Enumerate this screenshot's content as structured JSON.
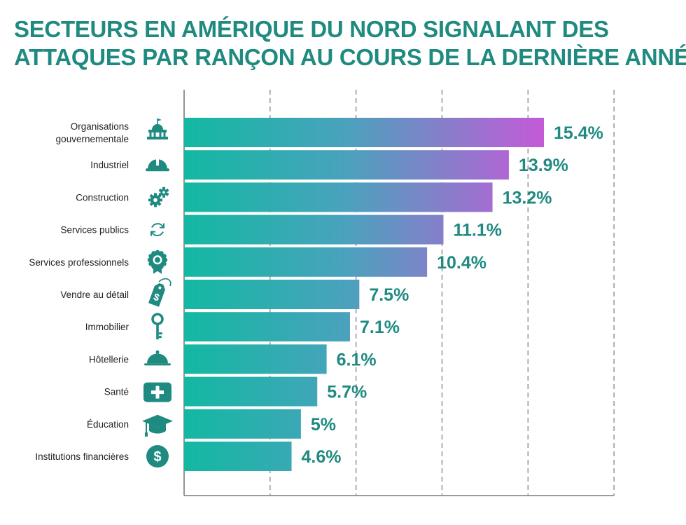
{
  "title_line1": "SECTEURS EN AMÉRIQUE DU NORD SIGNALANT DES",
  "title_line2": "ATTAQUES PAR RANÇON AU COURS DE LA DERNIÈRE ANNÉE",
  "colors": {
    "title": "#1f8a80",
    "bar_start": "#13b8a2",
    "bar_end": "#c45ad8",
    "icon": "#1f8a80",
    "value": "#1f8a80"
  },
  "chart_data": {
    "type": "bar",
    "orientation": "horizontal",
    "title": "SECTEURS EN AMÉRIQUE DU NORD SIGNALANT DES ATTAQUES PAR RANÇON AU COURS DE LA DERNIÈRE ANNÉE",
    "categories": [
      "Organisations\ngouvernementale",
      "Industriel",
      "Construction",
      "Services publics",
      "Services professionnels",
      "Vendre au détail",
      "Immobilier",
      "Hôtellerie",
      "Santé",
      "Éducation",
      "Institutions financières"
    ],
    "values": [
      15.4,
      13.9,
      13.2,
      11.1,
      10.4,
      7.5,
      7.1,
      6.1,
      5.7,
      5,
      4.6
    ],
    "value_labels": [
      "15.4%",
      "13.9%",
      "13.2%",
      "11.1%",
      "10.4%",
      "7.5%",
      "7.1%",
      "6.1%",
      "5.7%",
      "5%",
      "4.6%"
    ],
    "icons": [
      "building-icon",
      "hard-hat-icon",
      "gears-icon",
      "refresh-icon",
      "award-badge-icon",
      "price-tag-icon",
      "key-icon",
      "cloche-icon",
      "medical-kit-icon",
      "graduation-cap-icon",
      "dollar-coin-icon"
    ],
    "xlim": [
      0,
      18.4
    ],
    "grid": true,
    "legend": "none"
  }
}
